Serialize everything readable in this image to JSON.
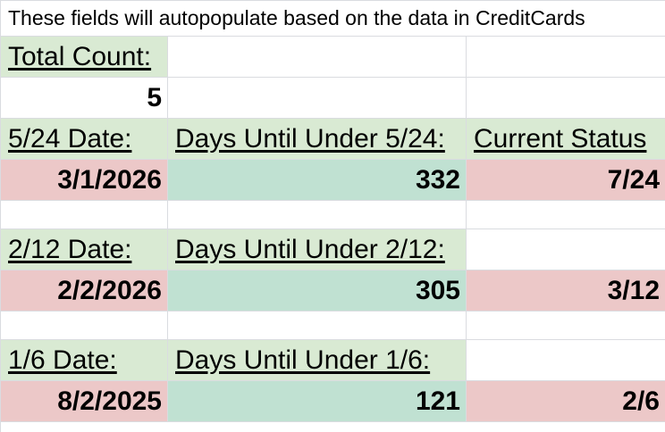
{
  "sheet": {
    "note": "These fields will autopopulate based on the data in CreditCards",
    "total_count_label": "Total Count:",
    "total_count_value": "5",
    "section_524": {
      "date_label": "5/24 Date:",
      "days_label": "Days Until Under 5/24:",
      "status_label": "Current Status",
      "date_value": "3/1/2026",
      "days_value": "332",
      "status_value": "7/24"
    },
    "section_212": {
      "date_label": "2/12 Date:",
      "days_label": "Days Until Under 2/12:",
      "date_value": "2/2/2026",
      "days_value": "305",
      "status_value": "3/12"
    },
    "section_16": {
      "date_label": "1/6 Date:",
      "days_label": "Days Until Under 1/6:",
      "date_value": "8/2/2025",
      "days_value": "121",
      "status_value": "2/6"
    }
  },
  "colors": {
    "label_green": "#d9ead3",
    "value_teal": "#c0e1d2",
    "value_pink": "#ecc8c8",
    "grid": "#dadce0"
  }
}
